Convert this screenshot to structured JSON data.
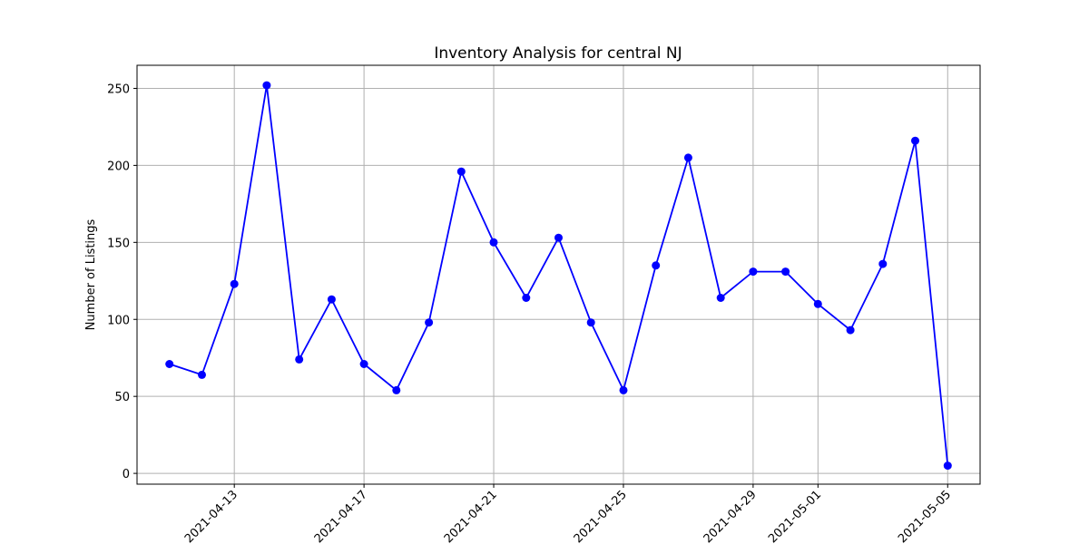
{
  "chart_data": {
    "type": "line",
    "title": "Inventory Analysis for central NJ",
    "xlabel": "",
    "ylabel": "Number of Listings",
    "x": [
      "2021-04-11",
      "2021-04-12",
      "2021-04-13",
      "2021-04-14",
      "2021-04-15",
      "2021-04-16",
      "2021-04-17",
      "2021-04-18",
      "2021-04-19",
      "2021-04-20",
      "2021-04-21",
      "2021-04-22",
      "2021-04-23",
      "2021-04-24",
      "2021-04-25",
      "2021-04-26",
      "2021-04-27",
      "2021-04-28",
      "2021-04-29",
      "2021-04-30",
      "2021-05-01",
      "2021-05-02",
      "2021-05-03",
      "2021-05-04",
      "2021-05-05"
    ],
    "series": [
      {
        "values": [
          71,
          64,
          123,
          252,
          74,
          113,
          71,
          54,
          98,
          196,
          150,
          114,
          153,
          98,
          54,
          135,
          205,
          114,
          131,
          131,
          110,
          93,
          136,
          216,
          5
        ]
      }
    ],
    "xlim": [
      "2021-04-10",
      "2021-05-06"
    ],
    "ylim": [
      -7,
      265
    ],
    "x_ticks": [
      "2021-04-13",
      "2021-04-17",
      "2021-04-21",
      "2021-04-25",
      "2021-04-29",
      "2021-05-01",
      "2021-05-05"
    ],
    "y_ticks": [
      0,
      50,
      100,
      150,
      200,
      250
    ],
    "grid": true,
    "legend": "none",
    "colors": {
      "line": "#0000ff",
      "marker": "#0000ff",
      "grid": "#b0b0b0"
    }
  }
}
